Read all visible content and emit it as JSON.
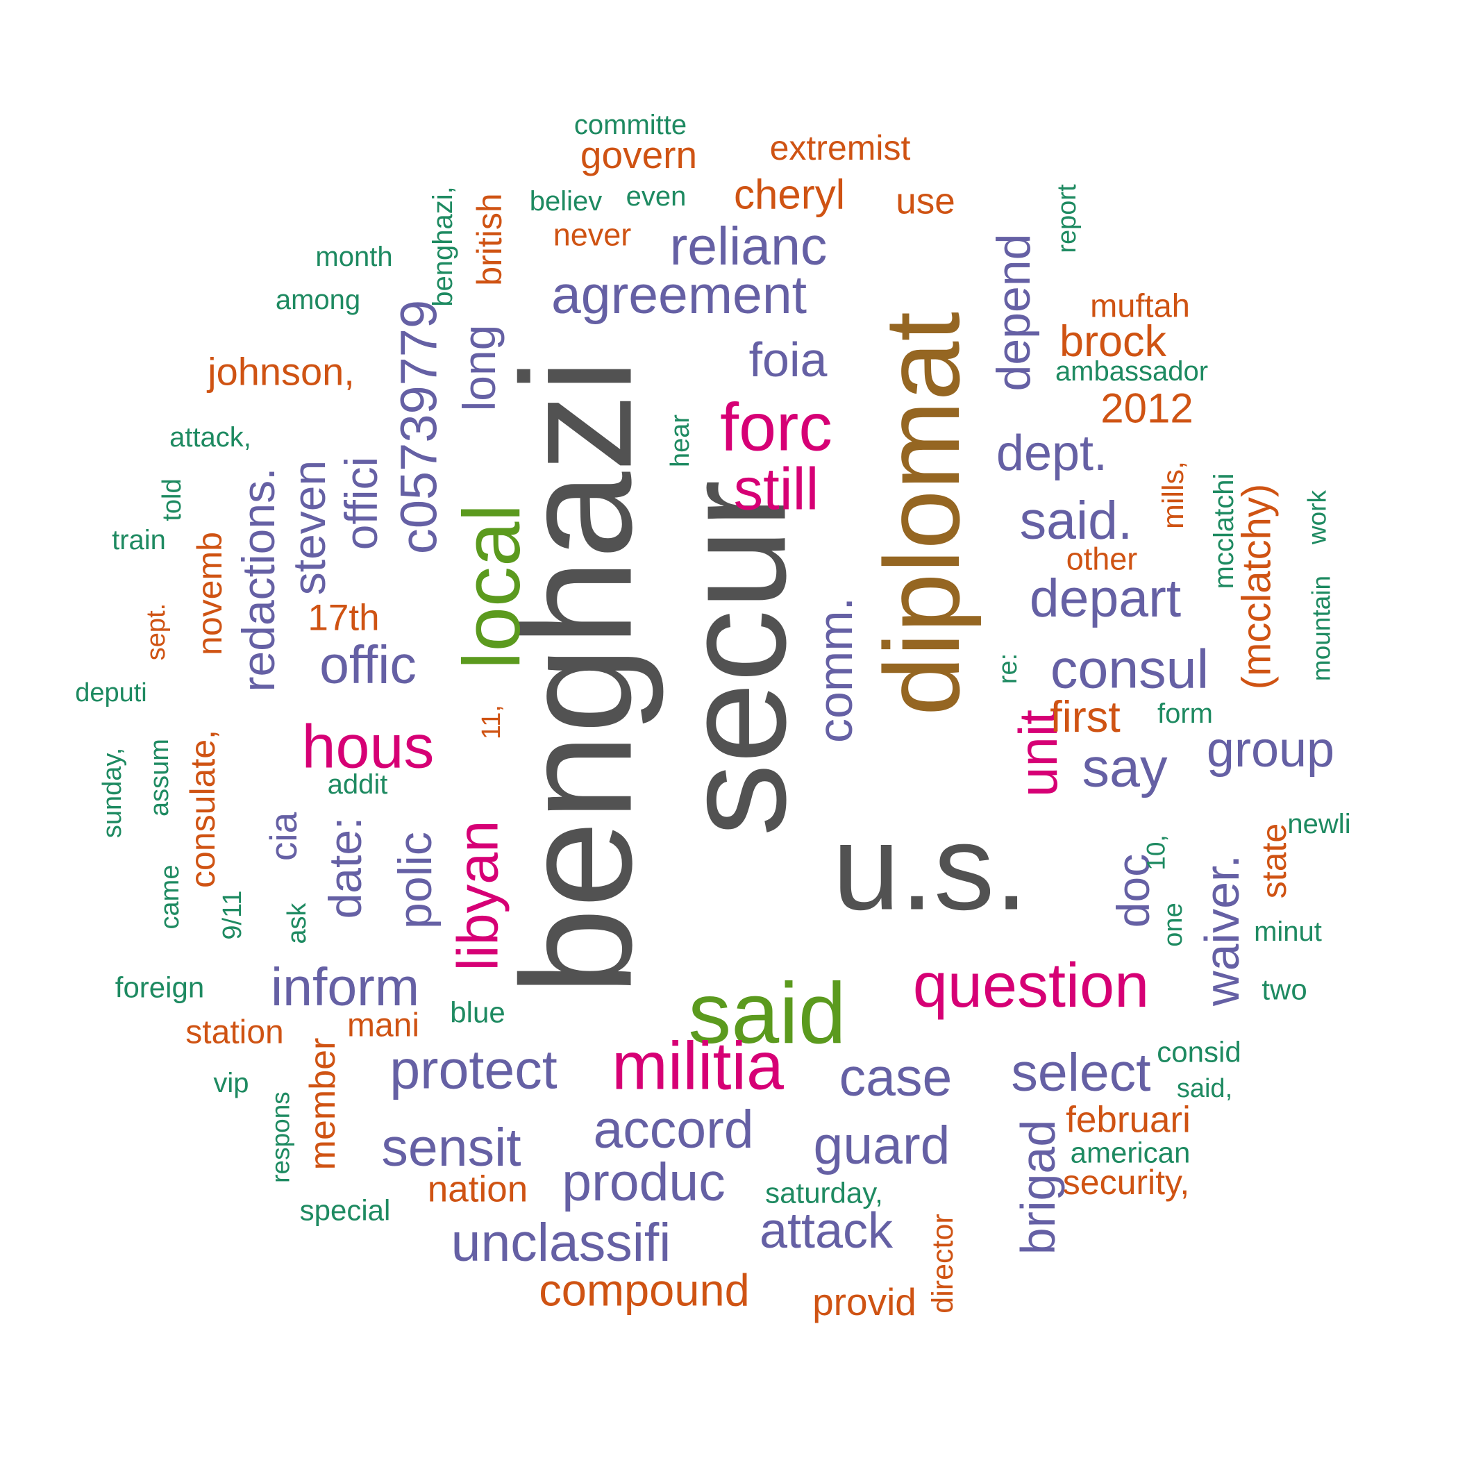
{
  "colors": {
    "gray": "#525252",
    "brown": "#956622",
    "green": "#5b9a1e",
    "magenta": "#d60075",
    "purple": "#6560a4",
    "orange": "#cf5313",
    "teal": "#1e8a61"
  },
  "words": [
    {
      "text": "benghazi",
      "color": "gray"
    },
    {
      "text": "secur",
      "color": "gray"
    },
    {
      "text": "u.s.",
      "color": "gray"
    },
    {
      "text": "diplomat",
      "color": "brown"
    },
    {
      "text": "said",
      "color": "green"
    },
    {
      "text": "local",
      "color": "green"
    },
    {
      "text": "militia",
      "color": "magenta"
    },
    {
      "text": "question",
      "color": "magenta"
    },
    {
      "text": "forc",
      "color": "magenta"
    },
    {
      "text": "hous",
      "color": "magenta"
    },
    {
      "text": "libyan",
      "color": "magenta"
    },
    {
      "text": "still",
      "color": "magenta"
    },
    {
      "text": "unit",
      "color": "magenta"
    },
    {
      "text": "agreement",
      "color": "purple"
    },
    {
      "text": "relianc",
      "color": "purple"
    },
    {
      "text": "foia",
      "color": "purple"
    },
    {
      "text": "c05739779",
      "color": "purple"
    },
    {
      "text": "long",
      "color": "purple"
    },
    {
      "text": "offici",
      "color": "purple"
    },
    {
      "text": "steven",
      "color": "purple"
    },
    {
      "text": "redactions.",
      "color": "purple"
    },
    {
      "text": "offic",
      "color": "purple"
    },
    {
      "text": "comm.",
      "color": "purple"
    },
    {
      "text": "depend",
      "color": "purple"
    },
    {
      "text": "dept.",
      "color": "purple"
    },
    {
      "text": "said.",
      "color": "purple"
    },
    {
      "text": "depart",
      "color": "purple"
    },
    {
      "text": "consul",
      "color": "purple"
    },
    {
      "text": "say",
      "color": "purple"
    },
    {
      "text": "group",
      "color": "purple"
    },
    {
      "text": "waiver.",
      "color": "purple"
    },
    {
      "text": "doc",
      "color": "purple"
    },
    {
      "text": "inform",
      "color": "purple"
    },
    {
      "text": "polic",
      "color": "purple"
    },
    {
      "text": "date:",
      "color": "purple"
    },
    {
      "text": "cia",
      "color": "purple"
    },
    {
      "text": "protect",
      "color": "purple"
    },
    {
      "text": "case",
      "color": "purple"
    },
    {
      "text": "select",
      "color": "purple"
    },
    {
      "text": "accord",
      "color": "purple"
    },
    {
      "text": "sensit",
      "color": "purple"
    },
    {
      "text": "produc",
      "color": "purple"
    },
    {
      "text": "guard",
      "color": "purple"
    },
    {
      "text": "unclassifi",
      "color": "purple"
    },
    {
      "text": "attack",
      "color": "purple"
    },
    {
      "text": "brigad",
      "color": "purple"
    },
    {
      "text": "(mcclatchy)",
      "color": "orange"
    },
    {
      "text": "govern",
      "color": "orange"
    },
    {
      "text": "extremist",
      "color": "orange"
    },
    {
      "text": "cheryl",
      "color": "orange"
    },
    {
      "text": "use",
      "color": "orange"
    },
    {
      "text": "never",
      "color": "orange"
    },
    {
      "text": "british",
      "color": "orange"
    },
    {
      "text": "muftah",
      "color": "orange"
    },
    {
      "text": "brock",
      "color": "orange"
    },
    {
      "text": "johnson,",
      "color": "orange"
    },
    {
      "text": "2012",
      "color": "orange"
    },
    {
      "text": "mills,",
      "color": "orange"
    },
    {
      "text": "other",
      "color": "orange"
    },
    {
      "text": "17th",
      "color": "orange"
    },
    {
      "text": "novemb",
      "color": "orange"
    },
    {
      "text": "sept.",
      "color": "orange"
    },
    {
      "text": "first",
      "color": "orange"
    },
    {
      "text": "11,",
      "color": "orange"
    },
    {
      "text": "consulate,",
      "color": "orange"
    },
    {
      "text": "state",
      "color": "orange"
    },
    {
      "text": "station",
      "color": "orange"
    },
    {
      "text": "mani",
      "color": "orange"
    },
    {
      "text": "member",
      "color": "orange"
    },
    {
      "text": "februari",
      "color": "orange"
    },
    {
      "text": "security,",
      "color": "orange"
    },
    {
      "text": "nation",
      "color": "orange"
    },
    {
      "text": "compound",
      "color": "orange"
    },
    {
      "text": "provid",
      "color": "orange"
    },
    {
      "text": "director",
      "color": "orange"
    },
    {
      "text": "committe",
      "color": "teal"
    },
    {
      "text": "believ",
      "color": "teal"
    },
    {
      "text": "even",
      "color": "teal"
    },
    {
      "text": "benghazi,",
      "color": "teal"
    },
    {
      "text": "report",
      "color": "teal"
    },
    {
      "text": "month",
      "color": "teal"
    },
    {
      "text": "among",
      "color": "teal"
    },
    {
      "text": "ambassador",
      "color": "teal"
    },
    {
      "text": "hear",
      "color": "teal"
    },
    {
      "text": "attack,",
      "color": "teal"
    },
    {
      "text": "told",
      "color": "teal"
    },
    {
      "text": "train",
      "color": "teal"
    },
    {
      "text": "mcclatchi",
      "color": "teal"
    },
    {
      "text": "work",
      "color": "teal"
    },
    {
      "text": "mountain",
      "color": "teal"
    },
    {
      "text": "re:",
      "color": "teal"
    },
    {
      "text": "deputi",
      "color": "teal"
    },
    {
      "text": "form",
      "color": "teal"
    },
    {
      "text": "sunday,",
      "color": "teal"
    },
    {
      "text": "assum",
      "color": "teal"
    },
    {
      "text": "addit",
      "color": "teal"
    },
    {
      "text": "newli",
      "color": "teal"
    },
    {
      "text": "10,",
      "color": "teal"
    },
    {
      "text": "came",
      "color": "teal"
    },
    {
      "text": "9/11",
      "color": "teal"
    },
    {
      "text": "ask",
      "color": "teal"
    },
    {
      "text": "one",
      "color": "teal"
    },
    {
      "text": "minut",
      "color": "teal"
    },
    {
      "text": "foreign",
      "color": "teal"
    },
    {
      "text": "blue",
      "color": "teal"
    },
    {
      "text": "two",
      "color": "teal"
    },
    {
      "text": "consid",
      "color": "teal"
    },
    {
      "text": "vip",
      "color": "teal"
    },
    {
      "text": "said,",
      "color": "teal"
    },
    {
      "text": "respons",
      "color": "teal"
    },
    {
      "text": "american",
      "color": "teal"
    },
    {
      "text": "saturday,",
      "color": "teal"
    },
    {
      "text": "special",
      "color": "teal"
    }
  ]
}
